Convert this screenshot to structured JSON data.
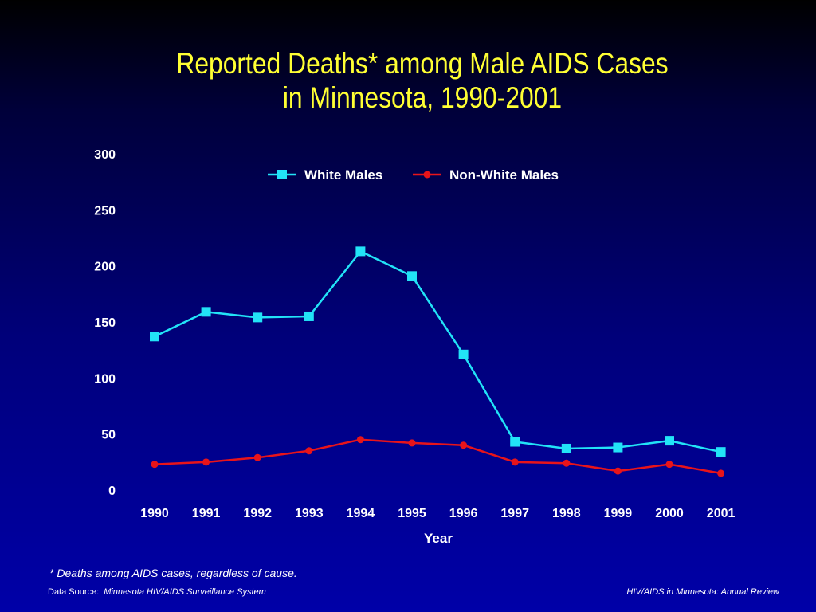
{
  "slide": {
    "title_line1": "Reported Deaths* among Male AIDS Cases",
    "title_line2": "in Minnesota, 1990-2001",
    "footnote": "* Deaths among AIDS cases, regardless of cause.",
    "source_label": "Data Source:",
    "source_name": "Minnesota HIV/AIDS Surveillance System",
    "right_note": "HIV/AIDS in Minnesota: Annual Review"
  },
  "chart_data": {
    "type": "line",
    "xlabel": "Year",
    "ylabel": "",
    "categories": [
      "1990",
      "1991",
      "1992",
      "1993",
      "1994",
      "1995",
      "1996",
      "1997",
      "1998",
      "1999",
      "2000",
      "2001"
    ],
    "ylim": [
      0,
      300
    ],
    "yticks": [
      0,
      50,
      100,
      150,
      200,
      250,
      300
    ],
    "grid": false,
    "legend_position": "top-center",
    "series": [
      {
        "name": "White Males",
        "color": "#22e3f7",
        "marker": "square",
        "values": [
          137,
          159,
          154,
          155,
          213,
          191,
          121,
          43,
          37,
          38,
          44,
          34
        ]
      },
      {
        "name": "Non-White Males",
        "color": "#e8141a",
        "marker": "circle",
        "values": [
          23,
          25,
          29,
          35,
          45,
          42,
          40,
          25,
          24,
          17,
          23,
          15
        ]
      }
    ]
  }
}
